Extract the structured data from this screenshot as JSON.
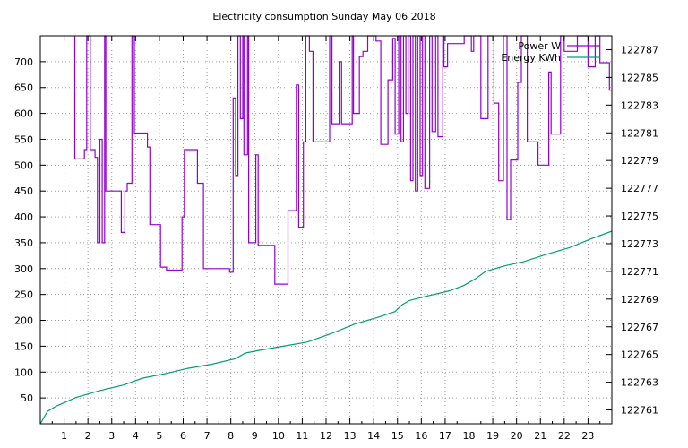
{
  "chart_data": {
    "type": "line",
    "title": "Electricity consumption Sunday May 06 2018",
    "xlabel": "",
    "ylabel": "",
    "y2label": "",
    "xlim": [
      0,
      24
    ],
    "ylim": [
      0,
      750
    ],
    "y2lim": [
      122760,
      122788
    ],
    "x_ticks": [
      1,
      2,
      3,
      4,
      5,
      6,
      7,
      8,
      9,
      10,
      11,
      12,
      13,
      14,
      15,
      16,
      17,
      18,
      19,
      20,
      21,
      22,
      23
    ],
    "y_ticks": [
      50,
      100,
      150,
      200,
      250,
      300,
      350,
      400,
      450,
      500,
      550,
      600,
      650,
      700
    ],
    "y2_ticks": [
      122761,
      122763,
      122765,
      122767,
      122769,
      122771,
      122773,
      122775,
      122777,
      122779,
      122781,
      122783,
      122785,
      122787
    ],
    "grid": true,
    "legend_position": "top-right",
    "series": [
      {
        "name": "Power W",
        "axis": "y1",
        "color": "#9400d3",
        "step": true,
        "points": [
          [
            1.45,
            750
          ],
          [
            1.45,
            512
          ],
          [
            1.85,
            512
          ],
          [
            1.85,
            530
          ],
          [
            1.95,
            530
          ],
          [
            1.95,
            750
          ],
          [
            2.1,
            750
          ],
          [
            2.1,
            530
          ],
          [
            2.3,
            530
          ],
          [
            2.3,
            515
          ],
          [
            2.4,
            515
          ],
          [
            2.4,
            350
          ],
          [
            2.5,
            350
          ],
          [
            2.5,
            550
          ],
          [
            2.6,
            550
          ],
          [
            2.6,
            350
          ],
          [
            2.7,
            350
          ],
          [
            2.7,
            750
          ],
          [
            2.75,
            750
          ],
          [
            2.75,
            450
          ],
          [
            3.4,
            450
          ],
          [
            3.4,
            370
          ],
          [
            3.55,
            370
          ],
          [
            3.55,
            450
          ],
          [
            3.65,
            450
          ],
          [
            3.65,
            465
          ],
          [
            3.85,
            465
          ],
          [
            3.85,
            750
          ],
          [
            3.95,
            750
          ],
          [
            3.95,
            562
          ],
          [
            4.5,
            562
          ],
          [
            4.5,
            535
          ],
          [
            4.6,
            535
          ],
          [
            4.6,
            385
          ],
          [
            5.05,
            385
          ],
          [
            5.05,
            303
          ],
          [
            5.3,
            303
          ],
          [
            5.3,
            297
          ],
          [
            5.95,
            297
          ],
          [
            5.95,
            400
          ],
          [
            6.05,
            400
          ],
          [
            6.05,
            530
          ],
          [
            6.6,
            530
          ],
          [
            6.6,
            465
          ],
          [
            6.85,
            465
          ],
          [
            6.85,
            300
          ],
          [
            7.95,
            300
          ],
          [
            7.95,
            293
          ],
          [
            8.1,
            293
          ],
          [
            8.1,
            630
          ],
          [
            8.2,
            630
          ],
          [
            8.2,
            480
          ],
          [
            8.3,
            480
          ],
          [
            8.3,
            750
          ],
          [
            8.4,
            750
          ],
          [
            8.4,
            590
          ],
          [
            8.5,
            590
          ],
          [
            8.5,
            750
          ],
          [
            8.55,
            750
          ],
          [
            8.55,
            520
          ],
          [
            8.7,
            520
          ],
          [
            8.7,
            750
          ],
          [
            8.75,
            750
          ],
          [
            8.75,
            350
          ],
          [
            9.05,
            350
          ],
          [
            9.05,
            520
          ],
          [
            9.15,
            520
          ],
          [
            9.15,
            345
          ],
          [
            9.85,
            345
          ],
          [
            9.85,
            270
          ],
          [
            10.4,
            270
          ],
          [
            10.4,
            412
          ],
          [
            10.75,
            412
          ],
          [
            10.75,
            655
          ],
          [
            10.85,
            655
          ],
          [
            10.85,
            380
          ],
          [
            11.05,
            380
          ],
          [
            11.05,
            545
          ],
          [
            11.15,
            545
          ],
          [
            11.15,
            750
          ],
          [
            11.3,
            750
          ],
          [
            11.3,
            720
          ],
          [
            11.45,
            720
          ],
          [
            11.45,
            545
          ],
          [
            12.15,
            545
          ],
          [
            12.15,
            750
          ],
          [
            12.25,
            750
          ],
          [
            12.25,
            580
          ],
          [
            12.55,
            580
          ],
          [
            12.55,
            700
          ],
          [
            12.65,
            700
          ],
          [
            12.65,
            580
          ],
          [
            13.1,
            580
          ],
          [
            13.1,
            750
          ],
          [
            13.15,
            750
          ],
          [
            13.15,
            600
          ],
          [
            13.4,
            600
          ],
          [
            13.4,
            710
          ],
          [
            13.55,
            710
          ],
          [
            13.55,
            720
          ],
          [
            13.75,
            720
          ],
          [
            13.75,
            750
          ],
          [
            14.1,
            750
          ],
          [
            14.1,
            740
          ],
          [
            14.3,
            740
          ],
          [
            14.3,
            540
          ],
          [
            14.6,
            540
          ],
          [
            14.6,
            665
          ],
          [
            14.8,
            665
          ],
          [
            14.8,
            745
          ],
          [
            14.9,
            745
          ],
          [
            14.9,
            560
          ],
          [
            15.05,
            560
          ],
          [
            15.05,
            750
          ],
          [
            15.15,
            750
          ],
          [
            15.15,
            545
          ],
          [
            15.25,
            545
          ],
          [
            15.25,
            750
          ],
          [
            15.35,
            750
          ],
          [
            15.35,
            600
          ],
          [
            15.45,
            600
          ],
          [
            15.45,
            750
          ],
          [
            15.55,
            750
          ],
          [
            15.55,
            470
          ],
          [
            15.65,
            470
          ],
          [
            15.65,
            750
          ],
          [
            15.75,
            750
          ],
          [
            15.75,
            450
          ],
          [
            15.85,
            450
          ],
          [
            15.85,
            750
          ],
          [
            15.95,
            750
          ],
          [
            15.95,
            480
          ],
          [
            16.05,
            480
          ],
          [
            16.05,
            750
          ],
          [
            16.15,
            750
          ],
          [
            16.15,
            455
          ],
          [
            16.35,
            455
          ],
          [
            16.35,
            750
          ],
          [
            16.45,
            750
          ],
          [
            16.45,
            565
          ],
          [
            16.6,
            565
          ],
          [
            16.6,
            750
          ],
          [
            16.7,
            750
          ],
          [
            16.7,
            555
          ],
          [
            16.9,
            555
          ],
          [
            16.9,
            750
          ],
          [
            16.95,
            750
          ],
          [
            16.95,
            690
          ],
          [
            17.1,
            690
          ],
          [
            17.1,
            735
          ],
          [
            17.8,
            735
          ],
          [
            17.8,
            750
          ],
          [
            18.1,
            750
          ],
          [
            18.1,
            720
          ],
          [
            18.2,
            720
          ],
          [
            18.2,
            750
          ],
          [
            18.5,
            750
          ],
          [
            18.5,
            590
          ],
          [
            18.8,
            590
          ],
          [
            18.8,
            750
          ],
          [
            19.05,
            750
          ],
          [
            19.05,
            620
          ],
          [
            19.25,
            620
          ],
          [
            19.25,
            470
          ],
          [
            19.45,
            470
          ],
          [
            19.45,
            750
          ],
          [
            19.6,
            750
          ],
          [
            19.6,
            395
          ],
          [
            19.75,
            395
          ],
          [
            19.75,
            510
          ],
          [
            20.05,
            510
          ],
          [
            20.05,
            660
          ],
          [
            20.2,
            660
          ],
          [
            20.2,
            750
          ],
          [
            20.45,
            750
          ],
          [
            20.45,
            545
          ],
          [
            20.9,
            545
          ],
          [
            20.9,
            500
          ],
          [
            21.35,
            500
          ],
          [
            21.35,
            680
          ],
          [
            21.45,
            680
          ],
          [
            21.45,
            560
          ],
          [
            21.85,
            560
          ],
          [
            21.85,
            750
          ],
          [
            22.0,
            750
          ],
          [
            22.0,
            720
          ],
          [
            22.55,
            720
          ],
          [
            22.55,
            750
          ],
          [
            23.0,
            750
          ],
          [
            23.0,
            690
          ],
          [
            23.3,
            690
          ],
          [
            23.3,
            750
          ],
          [
            23.5,
            750
          ],
          [
            23.5,
            698
          ],
          [
            23.9,
            698
          ],
          [
            23.9,
            645
          ],
          [
            24.0,
            645
          ]
        ]
      },
      {
        "name": "Energy KWh",
        "axis": "y2",
        "color": "#009e73",
        "step": false,
        "points": [
          [
            0,
            122760.0
          ],
          [
            0.3,
            122760.9
          ],
          [
            0.7,
            122761.3
          ],
          [
            1.5,
            122761.9
          ],
          [
            2.5,
            122762.4
          ],
          [
            3.5,
            122762.8
          ],
          [
            4.3,
            122763.3
          ],
          [
            5.2,
            122763.6
          ],
          [
            6.2,
            122764.0
          ],
          [
            7.2,
            122764.3
          ],
          [
            8.2,
            122764.7
          ],
          [
            8.6,
            122765.1
          ],
          [
            9.2,
            122765.3
          ],
          [
            10.2,
            122765.6
          ],
          [
            11.2,
            122765.9
          ],
          [
            12.2,
            122766.5
          ],
          [
            13.2,
            122767.2
          ],
          [
            14.2,
            122767.7
          ],
          [
            14.9,
            122768.1
          ],
          [
            15.2,
            122768.6
          ],
          [
            15.5,
            122768.9
          ],
          [
            16.2,
            122769.2
          ],
          [
            17.2,
            122769.6
          ],
          [
            17.8,
            122770.0
          ],
          [
            18.3,
            122770.5
          ],
          [
            18.7,
            122771.0
          ],
          [
            19.5,
            122771.4
          ],
          [
            20.3,
            122771.7
          ],
          [
            21.2,
            122772.2
          ],
          [
            22.2,
            122772.7
          ],
          [
            23.2,
            122773.4
          ],
          [
            24.0,
            122773.9
          ]
        ]
      }
    ]
  }
}
